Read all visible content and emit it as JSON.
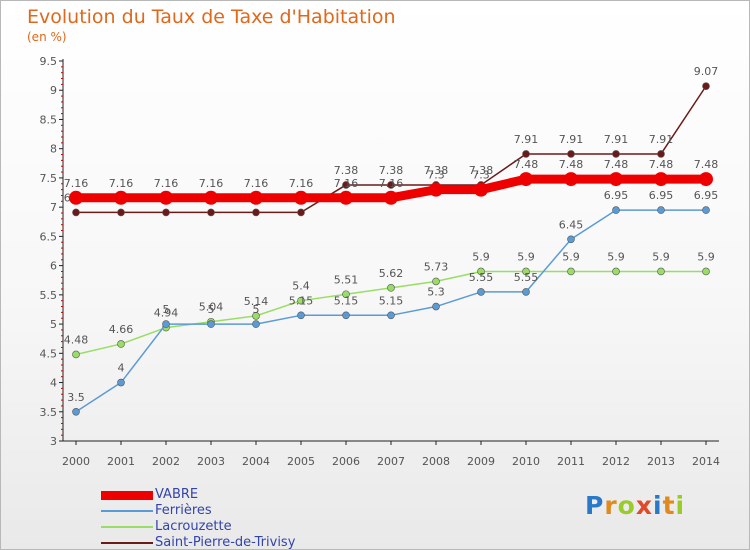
{
  "chart_data": {
    "type": "line",
    "title": "Evolution du Taux de Taxe d'Habitation",
    "subtitle": "(en %)",
    "x": [
      "2000",
      "2001",
      "2002",
      "2003",
      "2004",
      "2005",
      "2006",
      "2007",
      "2008",
      "2009",
      "2010",
      "2011",
      "2012",
      "2013",
      "2014"
    ],
    "yticks": [
      "3",
      "3.5",
      "4",
      "4.5",
      "5",
      "5.5",
      "6",
      "6.5",
      "7",
      "7.5",
      "8",
      "8.5",
      "9",
      "9.5"
    ],
    "ylim": [
      3,
      9.5
    ],
    "grid": false,
    "legend": "bottom-left",
    "series": [
      {
        "name": "Saint-Pierre-de-Trivisy",
        "color": "#6b1a1a",
        "values": [
          6.91,
          6.91,
          6.91,
          6.91,
          6.91,
          6.91,
          7.38,
          7.38,
          7.38,
          7.38,
          7.91,
          7.91,
          7.91,
          7.91,
          9.07
        ],
        "labels": [
          "6.91",
          "6.91",
          "6.91",
          "6.91",
          "6.91",
          "6.91",
          "7.38",
          "7.38",
          "7.38",
          "7.38",
          "7.91",
          "7.91",
          "7.91",
          "7.91",
          "9.07"
        ]
      },
      {
        "name": "Lacrouzette",
        "color": "#99dd66",
        "values": [
          4.48,
          4.66,
          4.94,
          5.04,
          5.14,
          5.4,
          5.51,
          5.62,
          5.73,
          5.9,
          5.9,
          5.9,
          5.9,
          5.9,
          5.9
        ],
        "labels": [
          "4.48",
          "4.66",
          "4.94",
          "5.04",
          "5.14",
          "5.4",
          "5.51",
          "5.62",
          "5.73",
          "5.9",
          "5.9",
          "5.9",
          "5.9",
          "5.9",
          "5.9"
        ]
      },
      {
        "name": "Ferrières",
        "color": "#5b9bd5",
        "values": [
          3.5,
          4,
          5,
          5,
          5,
          5.15,
          5.15,
          5.15,
          5.3,
          5.55,
          5.55,
          6.45,
          6.95,
          6.95,
          6.95
        ],
        "labels": [
          "3.5",
          "4",
          "5",
          "5",
          "5",
          "5.15",
          "5.15",
          "5.15",
          "5.3",
          "5.55",
          "5.55",
          "6.45",
          "6.95",
          "6.95",
          "6.95"
        ]
      },
      {
        "name": "VABRE",
        "color": "#ee0000",
        "values": [
          7.16,
          7.16,
          7.16,
          7.16,
          7.16,
          7.16,
          7.16,
          7.16,
          7.3,
          7.3,
          7.48,
          7.48,
          7.48,
          7.48,
          7.48
        ],
        "labels": [
          "7.16",
          "7.16",
          "7.16",
          "7.16",
          "7.16",
          "7.16",
          "7.16",
          "7.16",
          "7.3",
          "7.3",
          "7.48",
          "7.48",
          "7.48",
          "7.48",
          "7.48"
        ]
      }
    ]
  },
  "legend": {
    "items": [
      {
        "name": "VABRE",
        "color": "#ee0000"
      },
      {
        "name": "Ferrières",
        "color": "#5b9bd5"
      },
      {
        "name": "Lacrouzette",
        "color": "#99dd66"
      },
      {
        "name": "Saint-Pierre-de-Trivisy",
        "color": "#6b1a1a"
      }
    ]
  },
  "logo": {
    "text": "Proxiti"
  }
}
